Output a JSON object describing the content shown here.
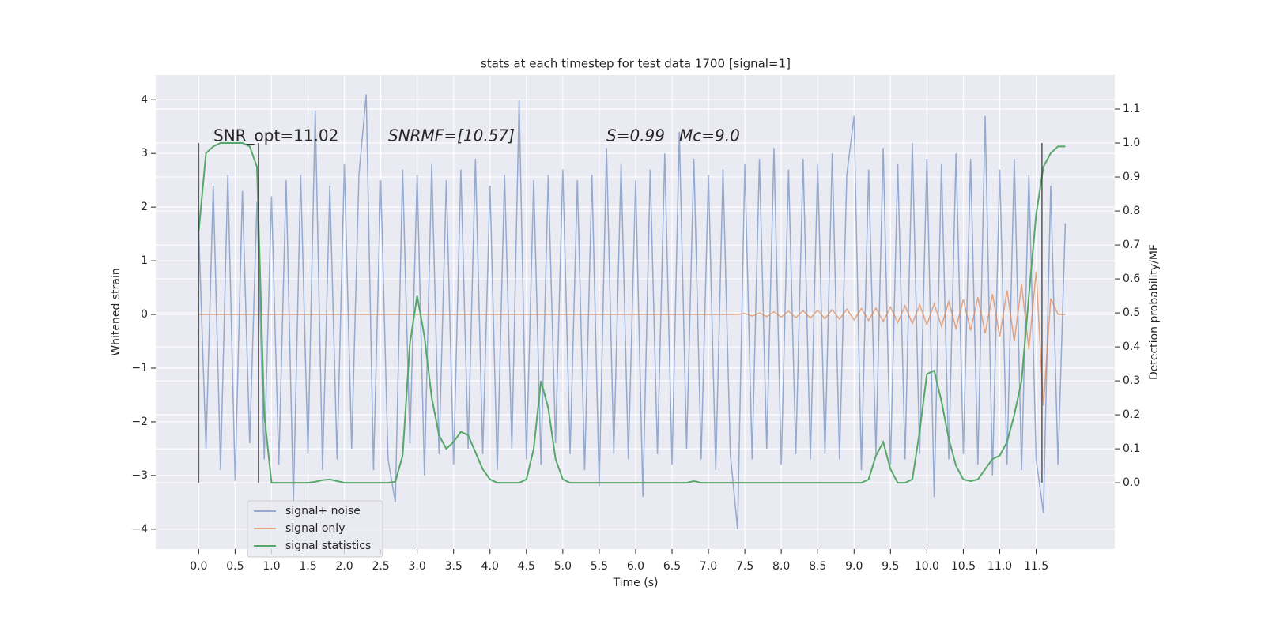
{
  "chart_data": {
    "type": "line",
    "title": "stats at each timestep for test data 1700 [signal=1]",
    "x_label": "Time (s)",
    "y_label": "Whitened strain",
    "y2_label": "Detection probability/MF",
    "annotations": [
      "SNR_opt=11.02",
      "SNRMF=[10.57]",
      "S=0.99",
      "Mc=9.0"
    ],
    "xlim": [
      -0.59,
      12.58
    ],
    "ylim": [
      -4.37,
      4.46
    ],
    "y2lim": [
      -0.195,
      1.2
    ],
    "xticks": [
      {
        "value": 0,
        "label": "0.0"
      },
      0.5,
      {
        "value": 1,
        "label": "1.0"
      },
      1.5,
      {
        "value": 2,
        "label": "2.0"
      },
      2.5,
      {
        "value": 3,
        "label": "3.0"
      },
      3.5,
      {
        "value": 4,
        "label": "4.0"
      },
      4.5,
      {
        "value": 5,
        "label": "5.0"
      },
      5.5,
      {
        "value": 6,
        "label": "6.0"
      },
      6.5,
      {
        "value": 7,
        "label": "7.0"
      },
      7.5,
      {
        "value": 8,
        "label": "8.0"
      },
      8.5,
      {
        "value": 9,
        "label": "9.0"
      },
      9.5,
      {
        "value": 10,
        "label": "10.0"
      },
      10.5,
      {
        "value": 11,
        "label": "11.0"
      },
      11.5
    ],
    "yticks": [
      {
        "value": -4,
        "label": "−4"
      },
      {
        "value": -3,
        "label": "−3"
      },
      {
        "value": -2,
        "label": "−2"
      },
      {
        "value": -1,
        "label": "−1"
      },
      0,
      1,
      2,
      3,
      4
    ],
    "y2ticks": [
      {
        "value": 0,
        "label": "0.0"
      },
      0.1,
      0.2,
      0.3,
      0.4,
      0.5,
      0.6,
      0.7,
      0.8,
      0.9,
      {
        "value": 1,
        "label": "1.0"
      },
      1.1
    ],
    "grid": true,
    "legend": "lower left",
    "vlines": {
      "x": [
        0,
        0.82,
        11.58
      ],
      "axis": "y2",
      "ymin": 0,
      "ymax": 1,
      "color": "#333333"
    },
    "x": [
      0,
      0.1,
      0.2,
      0.3,
      0.4,
      0.5,
      0.6,
      0.7,
      0.8,
      0.9,
      1,
      1.1,
      1.2,
      1.3,
      1.4,
      1.5,
      1.6,
      1.7,
      1.8,
      1.9,
      2,
      2.1,
      2.2,
      2.3,
      2.4,
      2.5,
      2.6,
      2.7,
      2.8,
      2.9,
      3,
      3.1,
      3.2,
      3.3,
      3.4,
      3.5,
      3.6,
      3.7,
      3.8,
      3.9,
      4,
      4.1,
      4.2,
      4.3,
      4.4,
      4.5,
      4.6,
      4.7,
      4.8,
      4.9,
      5,
      5.1,
      5.2,
      5.3,
      5.4,
      5.5,
      5.6,
      5.7,
      5.8,
      5.9,
      6,
      6.1,
      6.2,
      6.3,
      6.4,
      6.5,
      6.6,
      6.7,
      6.8,
      6.9,
      7,
      7.1,
      7.2,
      7.3,
      7.4,
      7.5,
      7.6,
      7.7,
      7.8,
      7.9,
      8,
      8.1,
      8.2,
      8.3,
      8.4,
      8.5,
      8.6,
      8.7,
      8.8,
      8.9,
      9,
      9.1,
      9.2,
      9.3,
      9.4,
      9.5,
      9.6,
      9.7,
      9.8,
      9.9,
      10,
      10.1,
      10.2,
      10.3,
      10.4,
      10.5,
      10.6,
      10.7,
      10.8,
      10.9,
      11,
      11.1,
      11.2,
      11.3,
      11.4,
      11.5,
      11.6,
      11.7,
      11.8,
      11.9
    ],
    "series": [
      {
        "name": "signal+ noise",
        "color": "#4c72b0",
        "opacity": 0.55,
        "values": [
          1.6,
          -2.5,
          2.4,
          -2.9,
          2.6,
          -3.1,
          2.3,
          -2.4,
          2.1,
          -2.7,
          2.2,
          -2.8,
          2.5,
          -3.5,
          2.6,
          -2.6,
          3.8,
          -2.9,
          2.4,
          -2.7,
          2.8,
          -2.5,
          2.6,
          4.1,
          -2.9,
          2.5,
          -2.7,
          -3.5,
          2.7,
          -2.4,
          2.6,
          -3.0,
          2.8,
          -2.6,
          2.5,
          -2.8,
          2.7,
          -2.5,
          2.9,
          -2.6,
          2.4,
          -2.9,
          2.6,
          -2.5,
          4.0,
          -2.7,
          2.5,
          -2.8,
          2.6,
          -2.4,
          2.7,
          -2.6,
          2.5,
          -2.9,
          2.6,
          -3.2,
          3.1,
          -2.6,
          2.8,
          -2.7,
          2.5,
          -3.4,
          2.7,
          -2.6,
          3.0,
          -2.8,
          3.4,
          -2.5,
          2.9,
          -2.7,
          2.6,
          -2.9,
          2.7,
          -2.6,
          -4.0,
          2.8,
          -2.7,
          2.9,
          -2.5,
          3.1,
          -2.8,
          2.7,
          -2.6,
          2.9,
          -2.7,
          2.8,
          -2.6,
          3.0,
          -2.7,
          2.6,
          3.7,
          -2.9,
          2.7,
          -2.6,
          3.1,
          -2.8,
          2.8,
          -2.7,
          3.2,
          -2.6,
          2.9,
          -3.4,
          2.8,
          -2.7,
          3.0,
          -2.6,
          2.9,
          -2.8,
          3.7,
          -3.0,
          2.7,
          -2.8,
          2.9,
          -2.9,
          2.6,
          -2.7,
          -3.7,
          2.4,
          -2.8,
          1.7
        ]
      },
      {
        "name": "signal only",
        "color": "#dd8452",
        "opacity": 0.7,
        "values": [
          0,
          0,
          0,
          0,
          0,
          0,
          0,
          0,
          0,
          0,
          0,
          0,
          0,
          0,
          0,
          0,
          0,
          0,
          0,
          0,
          0,
          0,
          0,
          0,
          0,
          0,
          0,
          0,
          0,
          0,
          0,
          0,
          0,
          0,
          0,
          0,
          0,
          0,
          0,
          0,
          0,
          0,
          0,
          0,
          0,
          0,
          0,
          0,
          0,
          0,
          0,
          0,
          0,
          0,
          0,
          0,
          0,
          0,
          0,
          0,
          0,
          0,
          0,
          0,
          0,
          0,
          0,
          0,
          0,
          0,
          0,
          0,
          0,
          0,
          0,
          0.02,
          -0.03,
          0.03,
          -0.04,
          0.05,
          -0.05,
          0.06,
          -0.06,
          0.07,
          -0.07,
          0.08,
          -0.08,
          0.09,
          -0.09,
          0.1,
          -0.1,
          0.11,
          -0.11,
          0.12,
          -0.13,
          0.14,
          -0.15,
          0.16,
          -0.17,
          0.18,
          -0.19,
          0.2,
          -0.22,
          0.24,
          -0.26,
          0.28,
          -0.3,
          0.32,
          -0.35,
          0.38,
          -0.41,
          0.45,
          -0.5,
          0.56,
          -0.65,
          0.8,
          -1.7,
          0.3,
          0,
          0
        ]
      },
      {
        "name": "signal statistics",
        "color": "#55a868",
        "opacity": 1,
        "axis": "y2",
        "values": [
          0.74,
          0.97,
          0.99,
          1.0,
          1.0,
          1.0,
          1.0,
          0.99,
          0.93,
          0.2,
          0.0,
          0.0,
          0.0,
          0.0,
          0.0,
          0.0,
          0.003,
          0.008,
          0.01,
          0.005,
          0.0,
          0.0,
          0.0,
          0.0,
          0.0,
          0.0,
          0.0,
          0.003,
          0.08,
          0.41,
          0.55,
          0.43,
          0.25,
          0.14,
          0.1,
          0.12,
          0.15,
          0.14,
          0.09,
          0.04,
          0.01,
          0.0,
          0.0,
          0.0,
          0.0,
          0.01,
          0.1,
          0.3,
          0.22,
          0.07,
          0.01,
          0,
          0,
          0,
          0,
          0,
          0,
          0,
          0,
          0,
          0,
          0,
          0,
          0,
          0,
          0,
          0,
          0,
          0.005,
          0,
          0,
          0,
          0,
          0,
          0,
          0,
          0,
          0,
          0,
          0,
          0,
          0,
          0,
          0,
          0,
          0,
          0,
          0,
          0,
          0,
          0,
          0,
          0.01,
          0.08,
          0.12,
          0.04,
          0.0,
          0.0,
          0.01,
          0.15,
          0.32,
          0.33,
          0.24,
          0.13,
          0.05,
          0.01,
          0.005,
          0.01,
          0.04,
          0.07,
          0.08,
          0.12,
          0.2,
          0.3,
          0.55,
          0.79,
          0.93,
          0.97,
          0.99,
          0.99
        ]
      }
    ]
  }
}
